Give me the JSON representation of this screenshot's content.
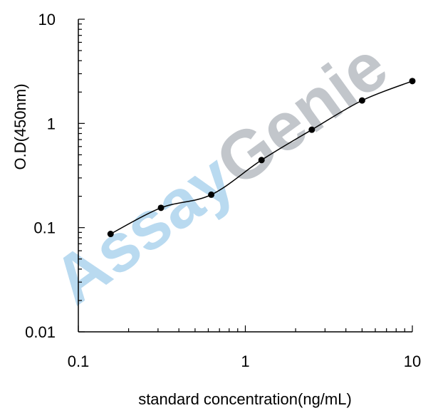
{
  "chart_data": {
    "type": "line",
    "xlabel": "standard concentration(ng/mL)",
    "ylabel": "O.D(450nm)",
    "xscale": "log",
    "yscale": "log",
    "xlim": [
      0.1,
      10
    ],
    "ylim": [
      0.01,
      10
    ],
    "x_tick_labels": [
      "0.1",
      "1",
      "10"
    ],
    "y_tick_labels": [
      "0.01",
      "0.1",
      "1",
      "10"
    ],
    "grid": false,
    "series": [
      {
        "x": [
          0.156,
          0.3125,
          0.625,
          1.25,
          2.5,
          5,
          10
        ],
        "y": [
          0.087,
          0.155,
          0.207,
          0.445,
          0.87,
          1.66,
          2.55
        ]
      }
    ],
    "watermark": {
      "part1": "Assay",
      "part2": "Genie"
    },
    "colors": {
      "line": "#000000",
      "marker": "#000000",
      "watermark_part1": "#b9daf0",
      "watermark_part2": "#c2c6cb"
    }
  }
}
